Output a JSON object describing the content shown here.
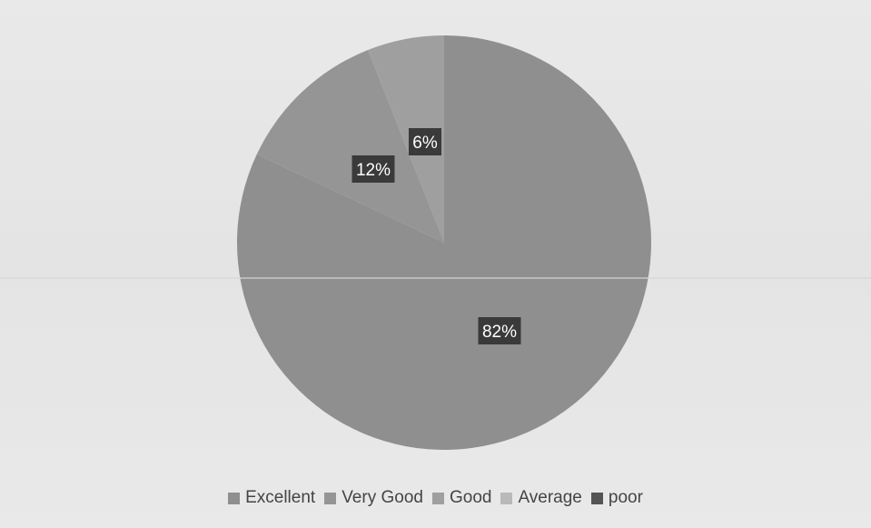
{
  "chart_data": {
    "type": "pie",
    "title": "",
    "categories": [
      "Excellent",
      "Very Good",
      "Good",
      "Average",
      "poor"
    ],
    "values": [
      82,
      12,
      6,
      0,
      0
    ],
    "data_labels": [
      "82%",
      "12%",
      "6%",
      "",
      ""
    ],
    "colors": [
      "#8f8f8f",
      "#959595",
      "#9f9f9f",
      "#b9b9b9",
      "#545454"
    ],
    "label_bg_color": "#3a3a3a",
    "legend_position": "bottom"
  }
}
